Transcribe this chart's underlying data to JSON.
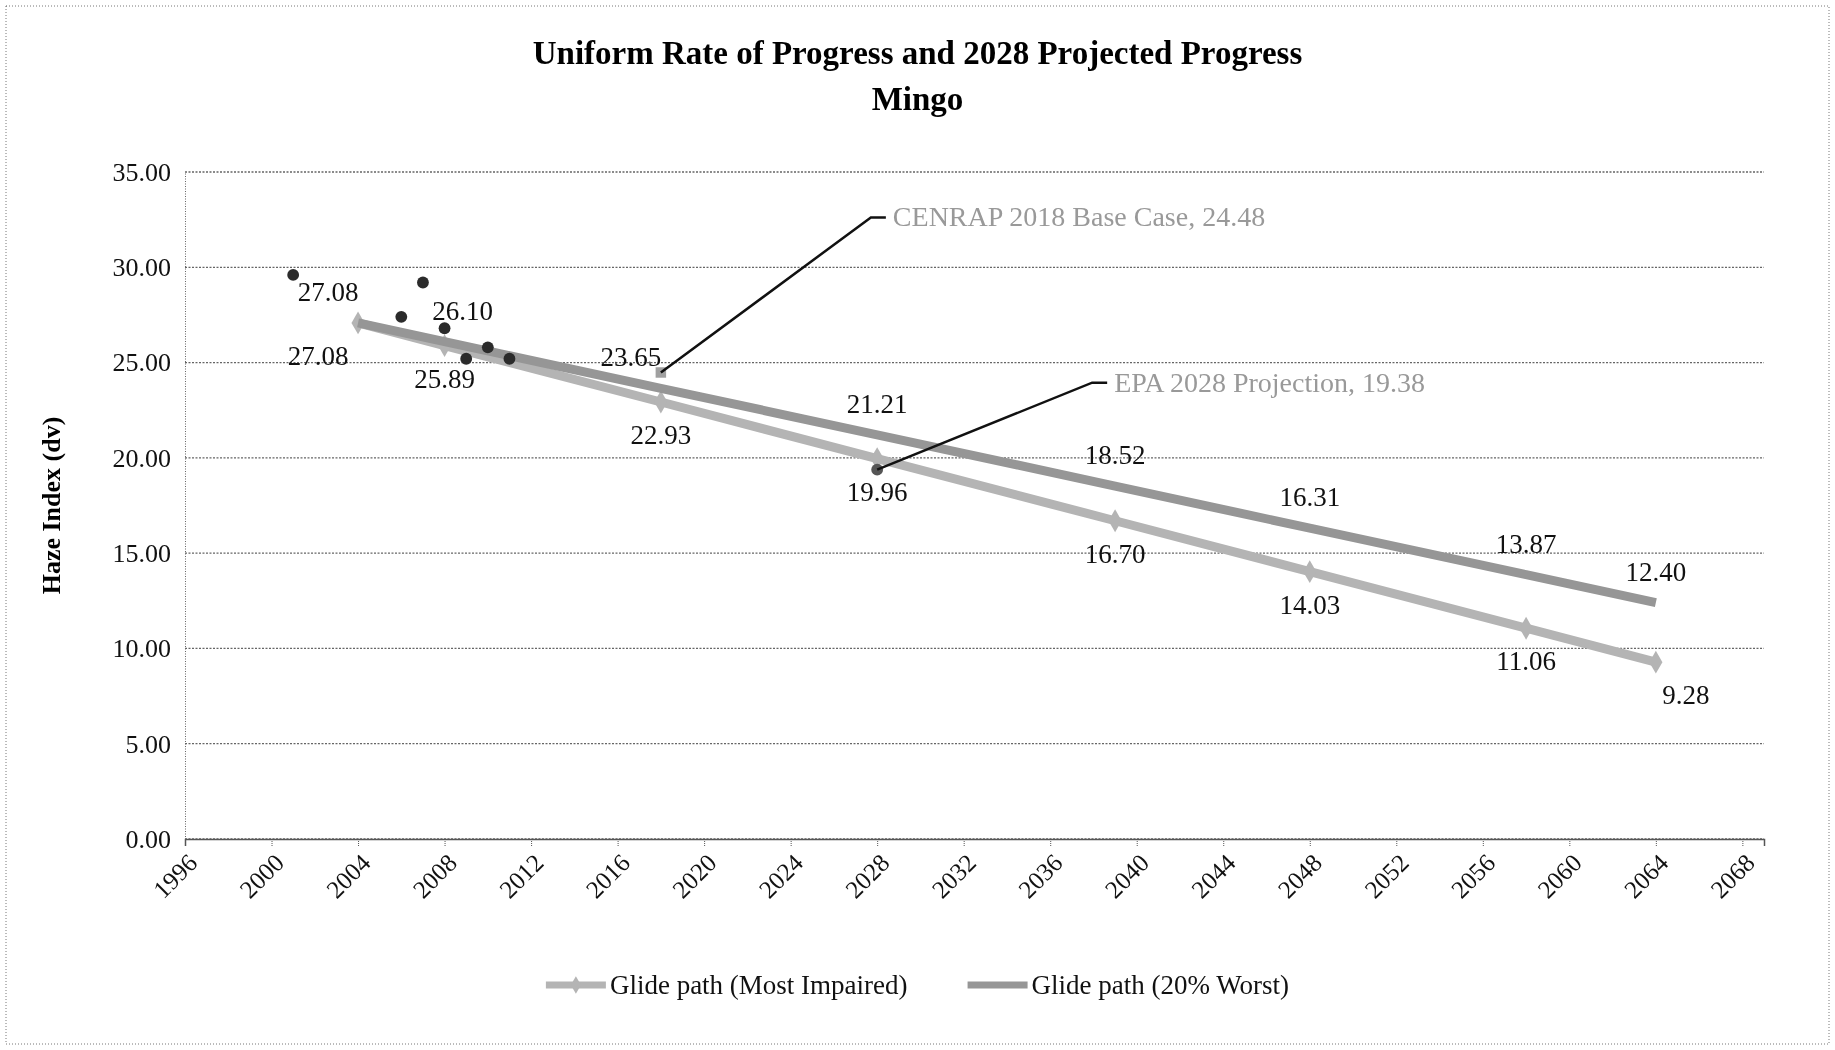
{
  "chart_data": {
    "type": "line",
    "title": "Uniform Rate of Progress and 2028 Projected Progress",
    "subtitle": "Mingo",
    "ylabel": "Haze Index (dv)",
    "xlim": [
      1996,
      2069
    ],
    "xticks": [
      1996,
      2000,
      2004,
      2008,
      2012,
      2016,
      2020,
      2024,
      2028,
      2032,
      2036,
      2040,
      2044,
      2048,
      2052,
      2056,
      2060,
      2064,
      2068
    ],
    "ylim": [
      0,
      35
    ],
    "yticks": [
      {
        "value": 0,
        "label": "0.00"
      },
      {
        "value": 5,
        "label": "5.00"
      },
      {
        "value": 10,
        "label": "10.00"
      },
      {
        "value": 15,
        "label": "15.00"
      },
      {
        "value": 20,
        "label": "20.00"
      },
      {
        "value": 25,
        "label": "25.00"
      },
      {
        "value": 30,
        "label": "30.00"
      },
      {
        "value": 35,
        "label": "35.00"
      }
    ],
    "grid": "y",
    "legend": "bottom",
    "series": [
      {
        "name": "Glide path (Most Impaired)",
        "color": "#b4b4b4",
        "marker": "diamond",
        "x": [
          2004,
          2008,
          2018,
          2028,
          2039,
          2048,
          2058,
          2064
        ],
        "values": [
          27.08,
          25.89,
          22.93,
          19.96,
          16.7,
          14.03,
          11.06,
          9.28
        ],
        "value_labels": [
          "27.08",
          "25.89",
          "22.93",
          "19.96",
          "16.70",
          "14.03",
          "11.06",
          "9.28"
        ]
      },
      {
        "name": "Glide path (20% Worst)",
        "color": "#969696",
        "marker": "none",
        "x": [
          2004,
          2008,
          2018,
          2028,
          2039,
          2048,
          2058,
          2064
        ],
        "values": [
          27.08,
          26.1,
          23.65,
          21.21,
          18.52,
          16.31,
          13.87,
          12.4
        ],
        "value_labels": [
          "27.08",
          "26.10",
          "23.65",
          "21.21",
          "18.52",
          "16.31",
          "13.87",
          "12.40"
        ]
      },
      {
        "type": "scatter",
        "color": "#2b2b2b",
        "marker": "circle",
        "x": [
          2001,
          2006,
          2007,
          2008,
          2009,
          2010,
          2011
        ],
        "values": [
          29.6,
          27.4,
          29.2,
          26.8,
          25.2,
          25.8,
          25.2
        ]
      },
      {
        "type": "scatter",
        "color": "#a0a0a0",
        "marker": "square",
        "x": [
          2018
        ],
        "values": [
          24.48
        ]
      },
      {
        "type": "scatter",
        "color": "#555555",
        "marker": "circle",
        "x": [
          2028
        ],
        "values": [
          19.38
        ]
      }
    ],
    "annotations": [
      {
        "text": "CENRAP 2018 Base Case, 24.48",
        "x": 2018,
        "y": 24.48
      },
      {
        "text": "EPA 2028 Projection, 19.38",
        "x": 2028,
        "y": 19.38
      }
    ]
  }
}
